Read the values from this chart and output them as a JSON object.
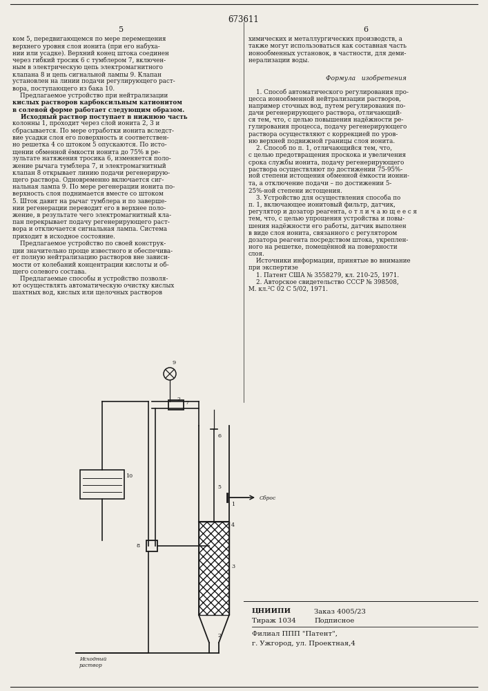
{
  "patent_number": "673611",
  "page_numbers": [
    "5",
    "6"
  ],
  "col1_text": [
    "ком 5, передвигающемся по мере перемещения",
    "верхнего уровня слоя ионита (при его набуха-",
    "нии или усадке). Верхний конец штока соединен",
    "через гибкий тросик 6 с тумблером 7, включен-",
    "ным в электрическую цепь электромагнитного",
    "клапана 8 и цепь сигнальной лампы 9. Клапан",
    "установлен на линии подачи регулирующего раст-",
    "вора, поступающего из бака 10.",
    "    Предлагаемое устройство при нейтрализации",
    "кислых растворов карбоксильным катионитом",
    "в солевой форме работает следующим образом.",
    "    Исходный раствор поступает в нижнюю часть",
    "колонны 1, проходит через слой ионита 2, 3 и",
    "сбрасывается. По мере отработки ионита вследст-",
    "вие усадки слоя его поверхность и соответствен-",
    "но решетка 4 со штоком 5 опускаются. По исто-",
    "щении обменной ёмкости ионита до 75% в ре-",
    "зультате натяжения тросика 6, изменяется поло-",
    "жение рычага тумблера 7, и электромагнитный",
    "клапан 8 открывает линию подачи регенерирую-",
    "щего раствора. Одновременно включается сиг-",
    "нальная лампа 9. По мере регенерации ионита по-",
    "верхность слоя поднимается вместе со штоком",
    "5. Шток давит на рычаг тумблера и по заверше-",
    "нии регенерации переводит его в верхнее поло-",
    "жение, в результате чего электромагнитный кла-",
    "пан перекрывает подачу регенерирующего раст-",
    "вора и отключается сигнальная лампа. Система",
    "приходит в исходное состояние.",
    "    Предлагаемое устройство по своей конструк-",
    "ции значительно проще известного и обеспечива-",
    "ет полную нейтрализацию растворов вне зависи-",
    "мости от колебаний концентрации кислоты и об-",
    "щего солевого состава.",
    "    Предлагаемые способы и устройство позволя-",
    "ют осуществлять автоматическую очистку кислых",
    "шахтных вод, кислых или щелочных растворов"
  ],
  "col1_bold_lines": [
    9,
    10,
    11
  ],
  "col2_text": [
    "химических и металлургических производств, а",
    "также могут использоваться как составная часть",
    "ионообменных установок, в частности, для деми-",
    "нерализации воды.",
    "",
    "",
    "    1. Способ автоматического регулирования про-",
    "цесса ионообменной нейтрализации растворов,",
    "например сточных вод, путем регулирования по-",
    "дачи регенерирующего раствора, отличающий-",
    "ся тем, что, с целью повышения надёжности ре-",
    "гулирования процесса, подачу регенерирующего",
    "раствора осуществляют с коррекцией по уров-",
    "ню верхней подвижной границы слоя ионита.",
    "    2. Способ по п. 1, отличающийся тем, что,",
    "с целью предотвращения проскока и увеличения",
    "срока службы ионита, подачу регенерирующего",
    "раствора осуществляют по достижении 75-95%-",
    "ной степени истощения обменной ёмкости ионни-",
    "та, а отключение подачи – по достижении 5-",
    "25%-ной степени истощения.",
    "    3. Устройство для осуществления способа по",
    "п. 1, включающее ионитовый фильтр, датчик,",
    "регулятор и дозатор реагента, о т л и ч а ю щ е е с я",
    "тем, что, с целью упрощения устройства и повы-",
    "шения надёжности его работы, датчик выполнен",
    "в виде слоя ионита, связанного с регулятором",
    "дозатора реагента посредством штока, укреплен-",
    "ного на решетке, помещённой на поверхности",
    "слоя.",
    "    Источники информации, принятые во внимание",
    "при экспертизе",
    "    1. Патент США № 3558279, кл. 210-25, 1971.",
    "    2. Авторское свидетельство СССР № 398508,",
    "М. кл.²С 02 С 5/02, 1971."
  ],
  "formula_title": "Формула   изобретения",
  "footer_left": "ЦНИИПИ",
  "footer_order": "Заказ 4005/23",
  "footer_circ": "Тираж 1034",
  "footer_type": "Подписное",
  "footer_branch": "Филиал ППП \"Патент\",",
  "footer_city": "г. Ужгород, ул. Проектная,4",
  "bg_color": "#f0ede6",
  "text_color": "#1a1a1a",
  "line_color": "#1a1a1a"
}
